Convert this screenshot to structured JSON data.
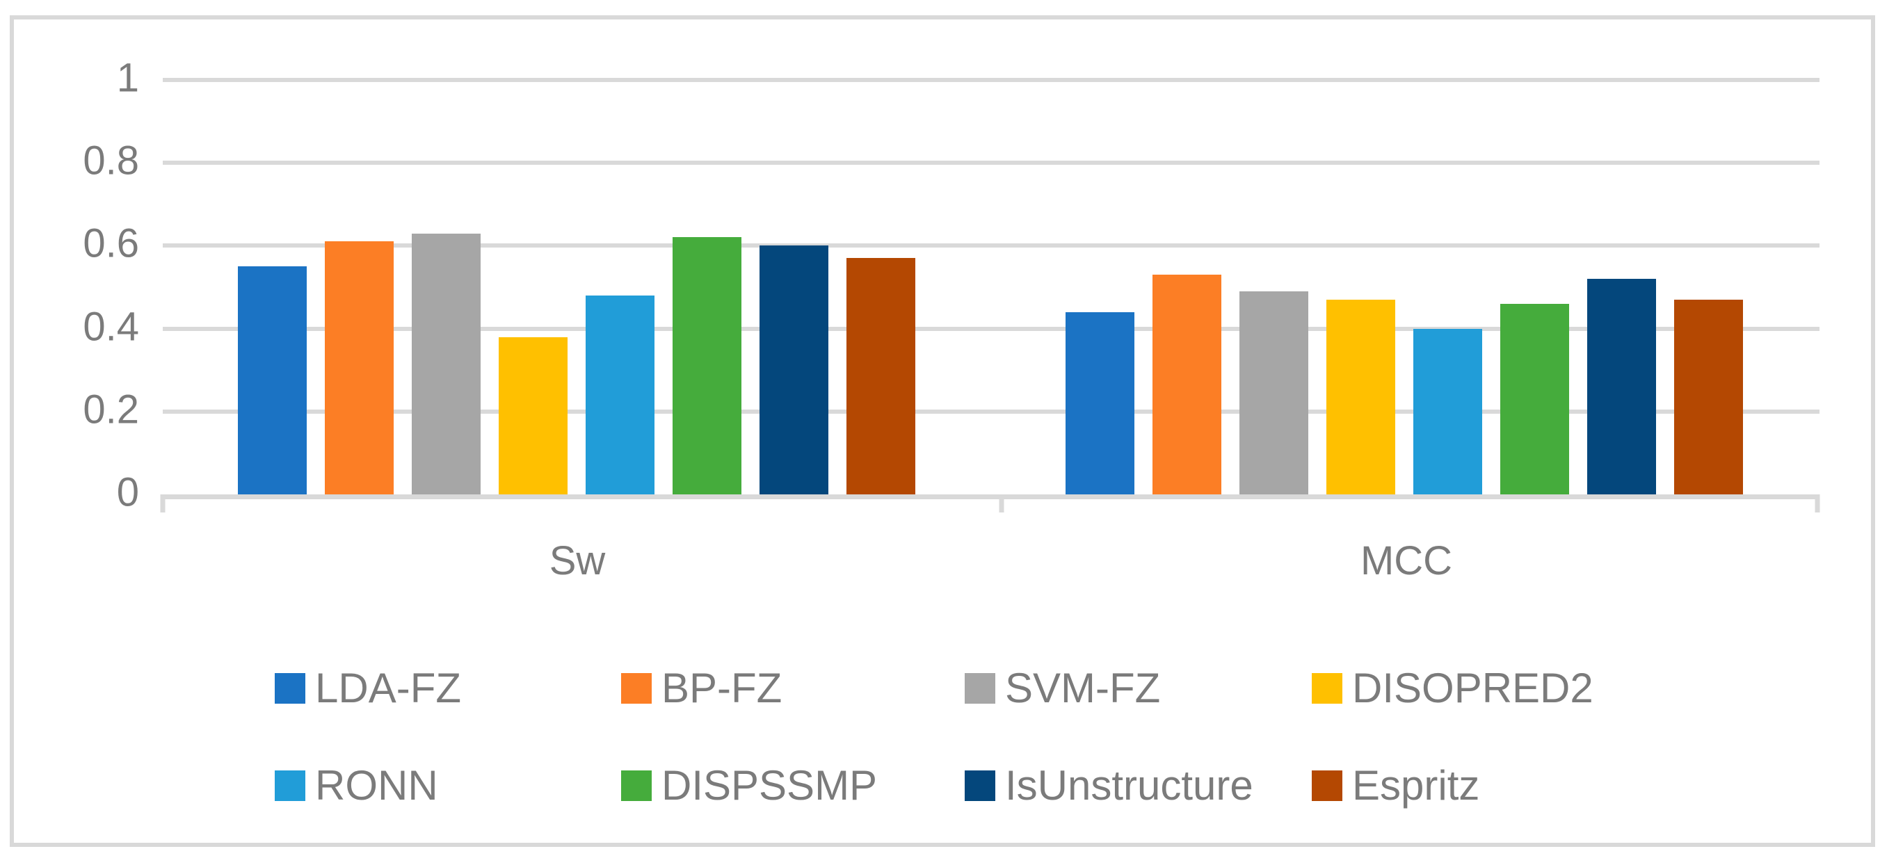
{
  "figure": {
    "background": "#FFFFFF",
    "border_color": "#D9D9D9"
  },
  "colors": {
    "gridline": "#D9D9D9",
    "axis_line": "#D9D9D9",
    "text": "#7B7B7B"
  },
  "chart_data": {
    "type": "bar",
    "title": "",
    "xlabel": "",
    "ylabel": "",
    "categories": [
      "Sw",
      "MCC"
    ],
    "series": [
      {
        "name": "LDA-FZ",
        "color": "#1B73C4",
        "values": [
          0.55,
          0.44
        ]
      },
      {
        "name": "BP-FZ",
        "color": "#FC7E25",
        "values": [
          0.61,
          0.53
        ]
      },
      {
        "name": "SVM-FZ",
        "color": "#A6A6A6",
        "values": [
          0.63,
          0.49
        ]
      },
      {
        "name": "DISOPRED2",
        "color": "#FFC000",
        "values": [
          0.38,
          0.47
        ]
      },
      {
        "name": "RONN",
        "color": "#219DD8",
        "values": [
          0.48,
          0.4
        ]
      },
      {
        "name": "DISPSSMP",
        "color": "#45AC3C",
        "values": [
          0.62,
          0.46
        ]
      },
      {
        "name": "IsUnstructure",
        "color": "#04477C",
        "values": [
          0.6,
          0.52
        ]
      },
      {
        "name": "Espritz",
        "color": "#B44802",
        "values": [
          0.57,
          0.47
        ]
      }
    ],
    "y_axis": {
      "min": 0,
      "max": 1,
      "tick_interval": 0.2,
      "tick_labels": [
        "0",
        "0.2",
        "0.4",
        "0.6",
        "0.8",
        "1"
      ]
    },
    "grid": true,
    "legend_position": "bottom",
    "legend_rows": [
      [
        "LDA-FZ",
        "BP-FZ",
        "SVM-FZ",
        "DISOPRED2"
      ],
      [
        "RONN",
        "DISPSSMP",
        "IsUnstructure",
        "Espritz"
      ]
    ]
  }
}
